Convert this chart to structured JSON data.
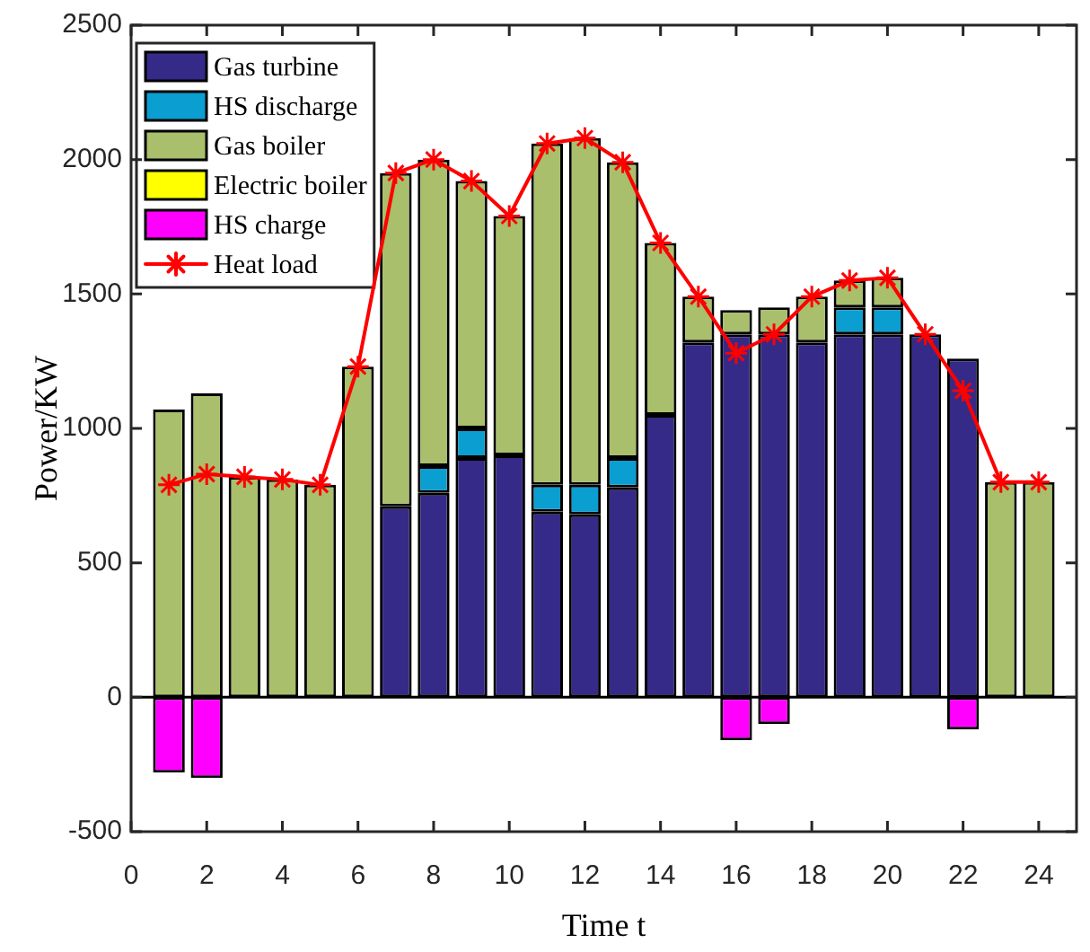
{
  "chart_data": {
    "type": "bar",
    "stacked": true,
    "xlabel": "Time t",
    "ylabel": "Power/KW",
    "x": [
      1,
      2,
      3,
      4,
      5,
      6,
      7,
      8,
      9,
      10,
      11,
      12,
      13,
      14,
      15,
      16,
      17,
      18,
      19,
      20,
      21,
      22,
      23,
      24
    ],
    "xlim": [
      0,
      25
    ],
    "xticks": [
      0,
      2,
      4,
      6,
      8,
      10,
      12,
      14,
      16,
      18,
      20,
      22,
      24
    ],
    "ylim": [
      -500,
      2500
    ],
    "yticks": [
      -500,
      0,
      500,
      1000,
      1500,
      2000,
      2500
    ],
    "legend": "top left",
    "marker": "cross",
    "ref_lines": [
      {
        "axis": "y",
        "value": 0,
        "color": "#000000"
      }
    ],
    "series": [
      {
        "name": "Gas turbine",
        "color": "#352a87",
        "values": [
          null,
          null,
          null,
          null,
          null,
          null,
          710,
          760,
          890,
          900,
          690,
          680,
          780,
          1050,
          1320,
          1350,
          1350,
          1320,
          1350,
          1350,
          1350,
          1260,
          null,
          null
        ]
      },
      {
        "name": "HS discharge",
        "color": "#0b9ed0",
        "values": [
          null,
          null,
          null,
          null,
          null,
          null,
          null,
          100,
          110,
          null,
          100,
          110,
          110,
          null,
          null,
          null,
          null,
          null,
          100,
          100,
          null,
          null,
          null,
          null
        ]
      },
      {
        "name": "Gas boiler",
        "color": "#a9bf6c",
        "values": [
          1070,
          1130,
          820,
          810,
          790,
          1230,
          1240,
          1140,
          920,
          890,
          1270,
          1290,
          1100,
          640,
          170,
          90,
          100,
          170,
          100,
          110,
          null,
          null,
          800,
          800
        ]
      },
      {
        "name": "Electric boiler",
        "color": "#ffff00",
        "values": [
          null,
          null,
          null,
          null,
          null,
          null,
          null,
          null,
          null,
          null,
          null,
          null,
          null,
          null,
          null,
          null,
          null,
          null,
          null,
          null,
          null,
          null,
          null,
          null
        ]
      },
      {
        "name": "HS charge",
        "color": "#ff00ff",
        "values": [
          -280,
          -300,
          null,
          null,
          null,
          null,
          null,
          null,
          null,
          null,
          null,
          null,
          null,
          null,
          null,
          -160,
          -100,
          null,
          null,
          null,
          null,
          -120,
          null,
          null
        ]
      },
      {
        "name": "Heat load",
        "type": "line",
        "color": "#ff0000",
        "values": [
          790,
          830,
          820,
          810,
          790,
          1230,
          1950,
          2000,
          1920,
          1790,
          2060,
          2080,
          1990,
          1690,
          1490,
          1280,
          1350,
          1490,
          1550,
          1560,
          1350,
          1140,
          800,
          800
        ]
      }
    ]
  }
}
